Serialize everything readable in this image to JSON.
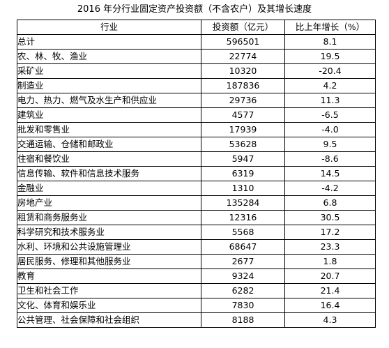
{
  "title": "2016 年分行业固定资产投资额（不含农户）及其增长速度",
  "table": {
    "headers": {
      "industry": "行业",
      "investment": "投资额（亿元）",
      "growth": "比上年增长（%）"
    },
    "rows": [
      {
        "industry": "总计",
        "investment": "596501",
        "growth": "8.1"
      },
      {
        "industry": "农、林、牧、渔业",
        "investment": "22774",
        "growth": "19.5"
      },
      {
        "industry": "采矿业",
        "investment": "10320",
        "growth": "-20.4"
      },
      {
        "industry": "制造业",
        "investment": "187836",
        "growth": "4.2"
      },
      {
        "industry": "电力、热力、燃气及水生产和供应业",
        "investment": "29736",
        "growth": "11.3"
      },
      {
        "industry": "建筑业",
        "investment": "4577",
        "growth": "-6.5"
      },
      {
        "industry": "批发和零售业",
        "investment": "17939",
        "growth": "-4.0"
      },
      {
        "industry": "交通运输、仓储和邮政业",
        "investment": "53628",
        "growth": "9.5"
      },
      {
        "industry": "住宿和餐饮业",
        "investment": "5947",
        "growth": "-8.6"
      },
      {
        "industry": "信息传输、软件和信息技术服务",
        "investment": "6319",
        "growth": "14.5"
      },
      {
        "industry": "金融业",
        "investment": "1310",
        "growth": "-4.2"
      },
      {
        "industry": "房地产业",
        "investment": "135284",
        "growth": "6.8"
      },
      {
        "industry": "租赁和商务服务业",
        "investment": "12316",
        "growth": "30.5"
      },
      {
        "industry": "科学研究和技术服务业",
        "investment": "5568",
        "growth": "17.2"
      },
      {
        "industry": "水利、环境和公共设施管理业",
        "investment": "68647",
        "growth": "23.3"
      },
      {
        "industry": "居民服务、修理和其他服务业",
        "investment": "2677",
        "growth": "1.8"
      },
      {
        "industry": "教育",
        "investment": "9324",
        "growth": "20.7"
      },
      {
        "industry": "卫生和社会工作",
        "investment": "6282",
        "growth": "21.4"
      },
      {
        "industry": "文化、体育和娱乐业",
        "investment": "7830",
        "growth": "16.4"
      },
      {
        "industry": "公共管理、社会保障和社会组织",
        "investment": "8188",
        "growth": "4.3"
      }
    ]
  }
}
